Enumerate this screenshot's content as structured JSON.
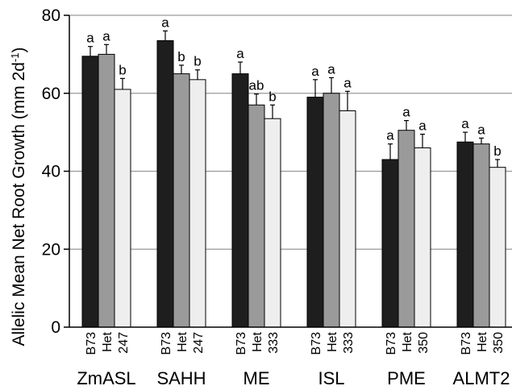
{
  "chart_data": {
    "type": "bar",
    "ylabel_main": "Allelic Mean Net Root Growth (mm 2d",
    "ylabel_sup": "-1",
    "ylabel_tail": ")",
    "ylim": [
      0,
      80
    ],
    "yticks": [
      0,
      20,
      40,
      60,
      80
    ],
    "grid": true,
    "groups": [
      {
        "name": "ZmASL",
        "bars": [
          {
            "label": "B73",
            "value": 69.5,
            "error": 2.5,
            "sig": "a"
          },
          {
            "label": "Het",
            "value": 70.0,
            "error": 2.5,
            "sig": "a"
          },
          {
            "label": "247",
            "value": 61.0,
            "error": 2.8,
            "sig": "b"
          }
        ]
      },
      {
        "name": "SAHH",
        "bars": [
          {
            "label": "B73",
            "value": 73.5,
            "error": 2.5,
            "sig": "a"
          },
          {
            "label": "Het",
            "value": 65.0,
            "error": 2.2,
            "sig": "b"
          },
          {
            "label": "247",
            "value": 63.5,
            "error": 2.5,
            "sig": "b"
          }
        ]
      },
      {
        "name": "ME",
        "bars": [
          {
            "label": "B73",
            "value": 65.0,
            "error": 3.0,
            "sig": "a"
          },
          {
            "label": "Het",
            "value": 57.0,
            "error": 2.8,
            "sig": "ab"
          },
          {
            "label": "333",
            "value": 53.5,
            "error": 3.5,
            "sig": "b"
          }
        ]
      },
      {
        "name": "ISL",
        "bars": [
          {
            "label": "B73",
            "value": 59.0,
            "error": 4.5,
            "sig": "a"
          },
          {
            "label": "Het",
            "value": 60.0,
            "error": 4.0,
            "sig": "a"
          },
          {
            "label": "333",
            "value": 55.5,
            "error": 5.0,
            "sig": "a"
          }
        ]
      },
      {
        "name": "PME",
        "bars": [
          {
            "label": "B73",
            "value": 43.0,
            "error": 4.0,
            "sig": "a"
          },
          {
            "label": "Het",
            "value": 50.5,
            "error": 2.5,
            "sig": "a"
          },
          {
            "label": "350",
            "value": 46.0,
            "error": 3.5,
            "sig": "a"
          }
        ]
      },
      {
        "name": "ALMT2",
        "bars": [
          {
            "label": "B73",
            "value": 47.5,
            "error": 2.5,
            "sig": "a"
          },
          {
            "label": "Het",
            "value": 47.0,
            "error": 1.5,
            "sig": "a"
          },
          {
            "label": "350",
            "value": 41.0,
            "error": 2.0,
            "sig": "b"
          }
        ]
      }
    ],
    "colors": {
      "B73": "#1e1e1e",
      "Het": "#9a9a9a",
      "mutant": "#eeeeee",
      "grid": "#9a9a9a",
      "axis": "#000000"
    }
  }
}
